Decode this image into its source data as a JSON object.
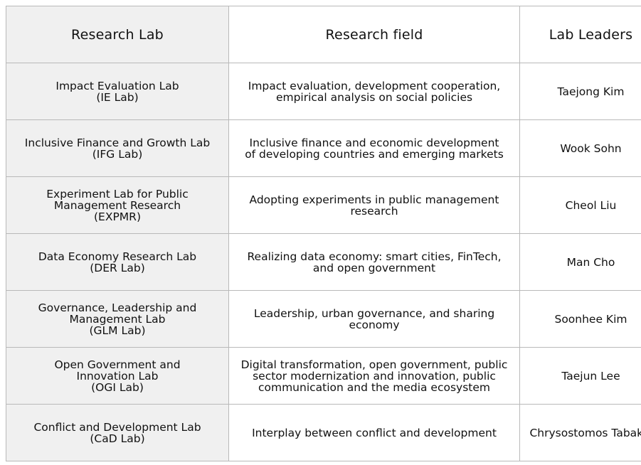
{
  "table": {
    "headers": [
      "Research Lab",
      "Research field",
      "Lab Leaders"
    ],
    "rows": [
      {
        "lab": [
          "Impact Evaluation Lab",
          "(IE Lab)"
        ],
        "field": [
          "Impact evaluation, development cooperation,",
          "empirical analysis on social policies"
        ],
        "leader": "Taejong Kim"
      },
      {
        "lab": [
          "Inclusive Finance and Growth Lab",
          "(IFG Lab)"
        ],
        "field": [
          "Inclusive finance and economic development",
          "of developing countries and emerging markets"
        ],
        "leader": "Wook Sohn"
      },
      {
        "lab": [
          "Experiment Lab for Public",
          "Management Research",
          "(EXPMR)"
        ],
        "field": [
          "Adopting experiments in public management",
          "research"
        ],
        "leader": "Cheol Liu"
      },
      {
        "lab": [
          "Data Economy Research Lab",
          "(DER Lab)"
        ],
        "field": [
          "Realizing data economy: smart cities, FinTech,",
          "and open government"
        ],
        "leader": "Man Cho"
      },
      {
        "lab": [
          "Governance, Leadership and",
          "Management Lab",
          "(GLM Lab)"
        ],
        "field": [
          "Leadership, urban governance, and sharing",
          "economy"
        ],
        "leader": "Soonhee Kim"
      },
      {
        "lab": [
          "Open Government and",
          "Innovation Lab",
          "(OGI Lab)"
        ],
        "field": [
          "Digital transformation, open government, public",
          "sector modernization and innovation, public",
          "communication and the media ecosystem"
        ],
        "leader": "Taejun Lee"
      },
      {
        "lab": [
          "Conflict and Development Lab",
          "(CaD Lab)"
        ],
        "field": [
          "Interplay between conflict and development"
        ],
        "leader": "Chrysostomos Tabakis"
      }
    ]
  }
}
